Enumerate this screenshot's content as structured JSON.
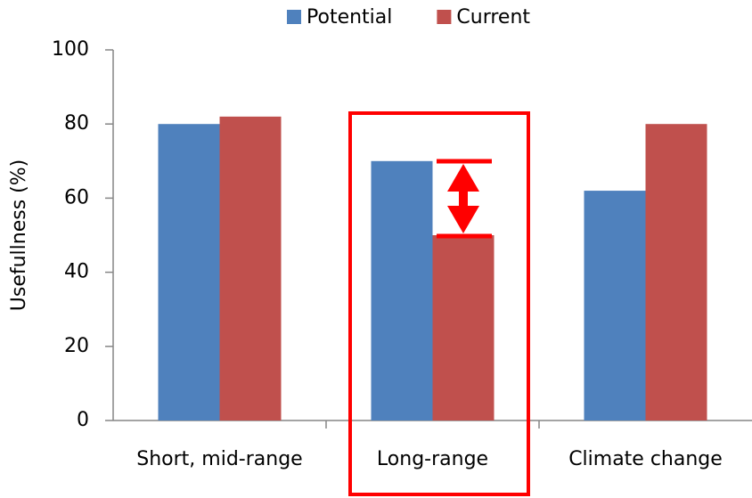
{
  "chart_data": {
    "type": "bar",
    "y_label": "Usefullness (%)",
    "categories": [
      "Short, mid-range",
      "Long-range",
      "Climate change"
    ],
    "series": [
      {
        "name": "Potential",
        "color": "#4f81bd",
        "values": [
          80,
          70,
          62
        ]
      },
      {
        "name": "Current",
        "color": "#c0504d",
        "values": [
          82,
          50,
          80
        ]
      }
    ],
    "ylim": [
      0,
      100
    ],
    "yticks": [
      0,
      20,
      40,
      60,
      80,
      100
    ],
    "grid": false,
    "legend": "top"
  }
}
